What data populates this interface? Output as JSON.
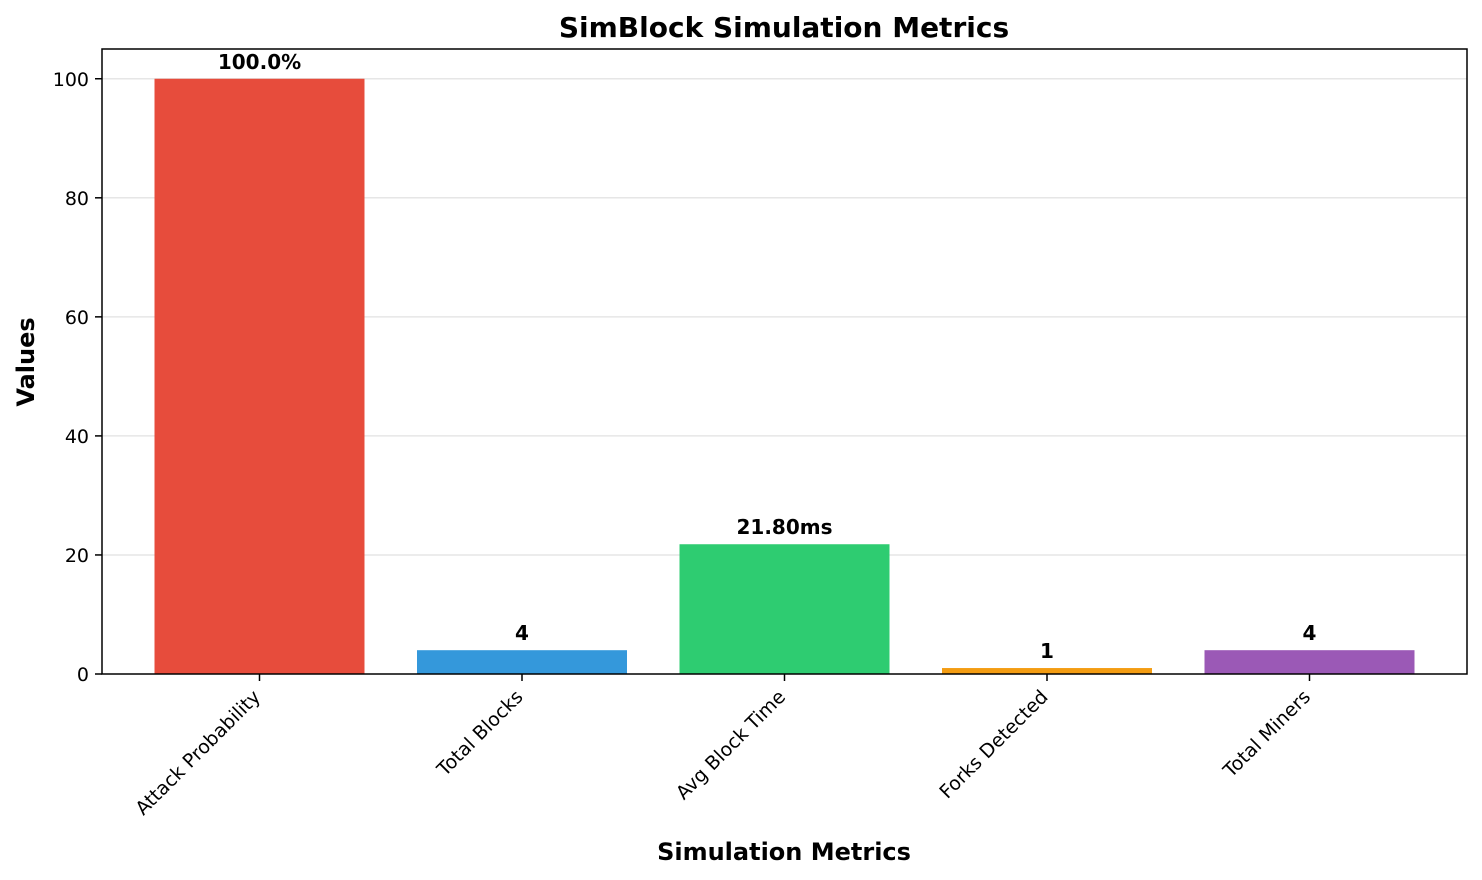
{
  "chart_data": {
    "type": "bar",
    "title": "SimBlock Simulation Metrics",
    "xlabel": "Simulation Metrics",
    "ylabel": "Values",
    "categories": [
      "Attack Probability",
      "Total Blocks",
      "Avg Block Time",
      "Forks Detected",
      "Total Miners"
    ],
    "values": [
      100.0,
      4,
      21.8,
      1,
      4
    ],
    "data_labels": [
      "100.0%",
      "4",
      "21.80ms",
      "1",
      "4"
    ],
    "colors": [
      "#e74c3c",
      "#3498db",
      "#2ecc71",
      "#f39c12",
      "#9b59b6"
    ],
    "ylim": [
      0,
      105
    ],
    "yticks": [
      0,
      20,
      40,
      60,
      80,
      100
    ],
    "grid": "y-axis"
  }
}
